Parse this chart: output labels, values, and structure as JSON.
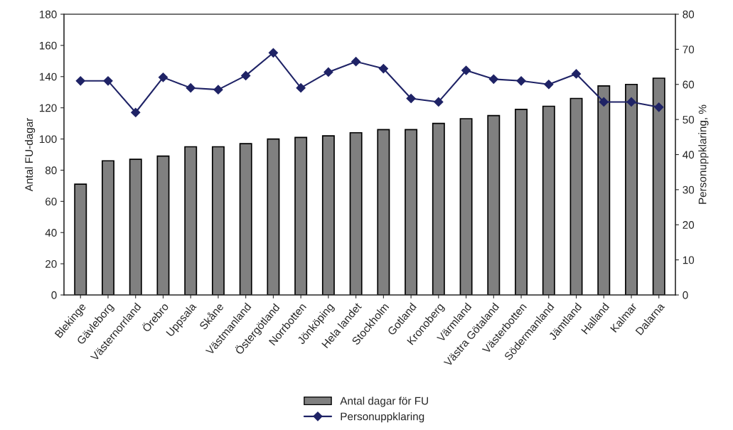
{
  "chart_data": {
    "type": "bar",
    "categories": [
      "Blekinge",
      "Gävleborg",
      "Västernorrland",
      "Örebro",
      "Uppsala",
      "Skåne",
      "Västmanland",
      "Östergötland",
      "Norrbotten",
      "Jönköping",
      "Hela landet",
      "Stockholm",
      "Gotland",
      "Kronoberg",
      "Värmland",
      "Västra Götaland",
      "Västerbotten",
      "Södermanland",
      "Jämtland",
      "Halland",
      "Kalmar",
      "Dalarna"
    ],
    "series": [
      {
        "name": "Antal dagar för FU",
        "color": "#808080",
        "values": [
          71,
          86,
          87,
          89,
          95,
          95,
          97,
          100,
          101,
          102,
          104,
          106,
          106,
          110,
          113,
          115,
          119,
          121,
          126,
          134,
          135,
          139
        ]
      },
      {
        "name": "Personuppklaring",
        "type": "line",
        "axis": "y2",
        "color": "#1f2366",
        "marker": "diamond",
        "values": [
          61,
          61,
          52,
          62,
          59,
          58.5,
          62.5,
          69,
          59,
          63.5,
          66.5,
          64.5,
          56,
          55,
          64,
          61.5,
          61,
          60,
          63,
          55,
          55,
          53.5
        ]
      }
    ],
    "ylabel": "Antal FU-dagar",
    "y2label": "Personuppklaring, %",
    "ylim": [
      0,
      180
    ],
    "yticks": [
      0,
      20,
      40,
      60,
      80,
      100,
      120,
      140,
      160,
      180
    ],
    "y2lim": [
      0,
      80
    ],
    "y2ticks": [
      0,
      10,
      20,
      30,
      40,
      50,
      60,
      70,
      80
    ],
    "grid": false,
    "legend": "bottom"
  }
}
